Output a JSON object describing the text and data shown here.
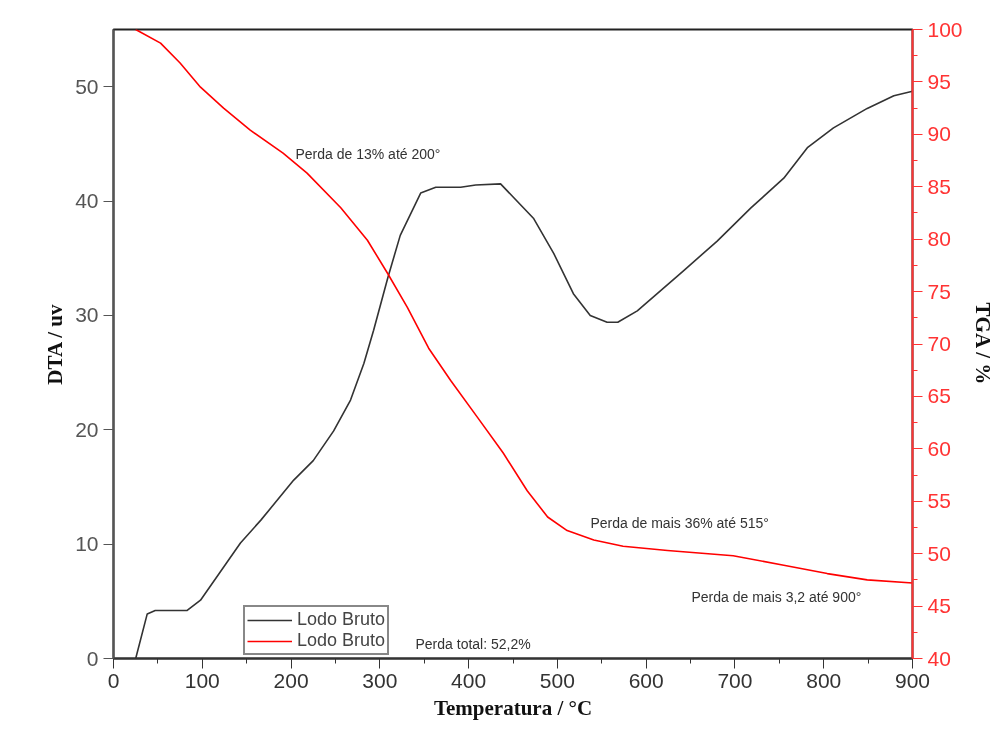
{
  "chart_data": {
    "type": "line",
    "xlabel": "Temperatura / °C",
    "ylabel": "DTA / uv",
    "y2label": "TGA / %",
    "xlim": [
      0,
      900
    ],
    "xticks": [
      0,
      100,
      200,
      300,
      400,
      500,
      600,
      700,
      800,
      900
    ],
    "ylim": [
      0,
      55
    ],
    "yticks": [
      0,
      10,
      20,
      30,
      40,
      50
    ],
    "y2lim": [
      40,
      100
    ],
    "y2ticks": [
      40,
      45,
      50,
      55,
      60,
      65,
      70,
      75,
      80,
      85,
      90,
      95,
      100
    ],
    "grid": false,
    "legend": "bottom left",
    "marker": "none",
    "line_style": "solid",
    "series": [
      {
        "name": "Lodo Bruto",
        "color": "#333333",
        "x": [
          25,
          38,
          47,
          83,
          98,
          143,
          166,
          203,
          225,
          248,
          267,
          282,
          293,
          309,
          323,
          346,
          363,
          391,
          408,
          436,
          473,
          496,
          518,
          537,
          556,
          568,
          590,
          642,
          680,
          718,
          755,
          782,
          811,
          849,
          879,
          900
        ],
        "values": [
          0,
          3.9,
          4.2,
          4.2,
          5.1,
          10.1,
          12.1,
          15.6,
          17.3,
          19.9,
          22.6,
          25.8,
          28.7,
          33.3,
          37.0,
          40.7,
          41.2,
          41.2,
          41.4,
          41.5,
          38.5,
          35.4,
          31.9,
          30.0,
          29.4,
          29.4,
          30.4,
          33.9,
          36.5,
          39.4,
          42.0,
          44.7,
          46.4,
          48.1,
          49.2,
          49.6
        ]
      },
      {
        "name": "Lodo Bruto",
        "color": "#ff0000",
        "axis": "y2",
        "x": [
          25,
          27,
          53,
          75,
          98,
          124,
          154,
          191,
          218,
          256,
          286,
          309,
          331,
          355,
          380,
          410,
          439,
          466,
          489,
          511,
          541,
          574,
          624,
          698,
          755,
          804,
          849,
          900
        ],
        "values": [
          100,
          99.9,
          98.7,
          96.8,
          94.5,
          92.5,
          90.4,
          88.2,
          86.3,
          83.0,
          79.9,
          76.7,
          73.5,
          69.6,
          66.5,
          63.0,
          59.6,
          56.0,
          53.5,
          52.2,
          51.3,
          50.7,
          50.3,
          49.8,
          48.9,
          48.1,
          47.5,
          47.2
        ]
      }
    ],
    "annotations": [
      "Perda de 13% até 200°",
      "Perda de mais 36% até 515°",
      "Perda de mais 3,2 até 900°",
      "Perda total: 52,2%"
    ]
  }
}
